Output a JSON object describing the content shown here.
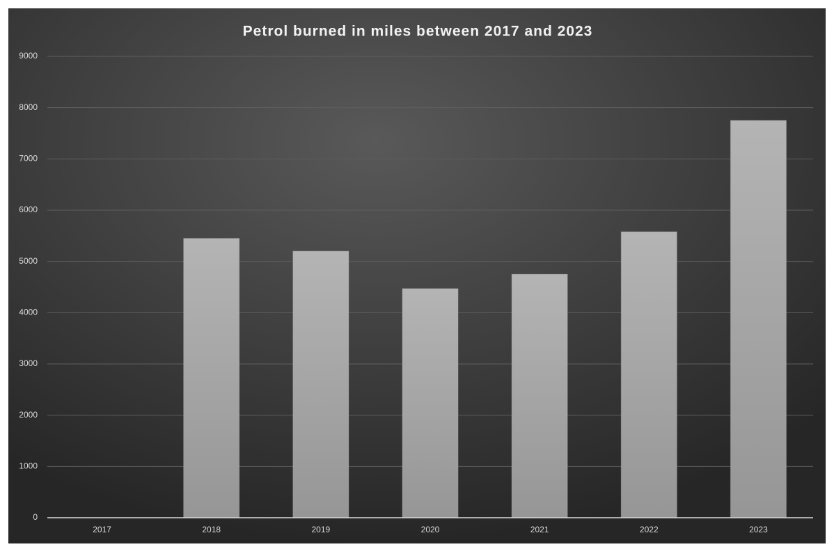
{
  "chart_data": {
    "type": "bar",
    "title": "Petrol burned in miles between 2017 and 2023",
    "categories": [
      "2017",
      "2018",
      "2019",
      "2020",
      "2021",
      "2022",
      "2023"
    ],
    "values": [
      0,
      5450,
      5200,
      4470,
      4750,
      5580,
      7750
    ],
    "color": "#a8a8a8",
    "ylim": [
      0,
      9000
    ],
    "yticks": [
      0,
      1000,
      2000,
      3000,
      4000,
      5000,
      6000,
      7000,
      8000,
      9000
    ],
    "grid": true
  }
}
